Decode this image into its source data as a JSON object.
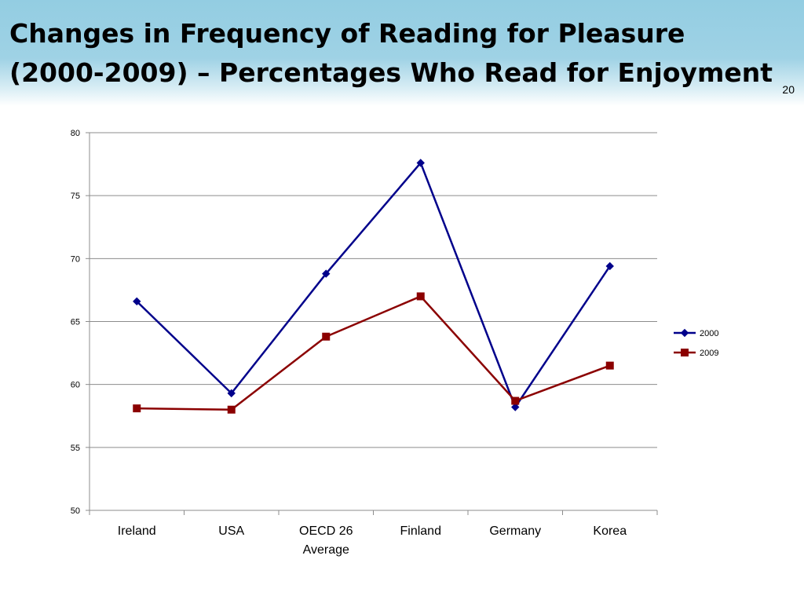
{
  "slide": {
    "title_line1": "Changes in Frequency of Reading for Pleasure",
    "title_line2": "(2000-2009) – Percentages Who Read for Enjoyment",
    "page_number": "20"
  },
  "chart_data": {
    "type": "line",
    "categories": [
      [
        "Ireland"
      ],
      [
        "USA"
      ],
      [
        "OECD 26",
        "Average"
      ],
      [
        "Finland"
      ],
      [
        "Germany"
      ],
      [
        "Korea"
      ]
    ],
    "ylim": [
      50,
      80
    ],
    "yticks": [
      50,
      55,
      60,
      65,
      70,
      75,
      80
    ],
    "grid": true,
    "legend_position": "right",
    "series": [
      {
        "name": "2000",
        "color": "#00008b",
        "marker": "diamond",
        "values": [
          66.6,
          59.3,
          68.8,
          77.6,
          58.2,
          69.4
        ]
      },
      {
        "name": "2009",
        "color": "#8b0000",
        "marker": "square",
        "values": [
          58.1,
          58.0,
          63.8,
          67.0,
          58.7,
          61.5
        ]
      }
    ]
  }
}
